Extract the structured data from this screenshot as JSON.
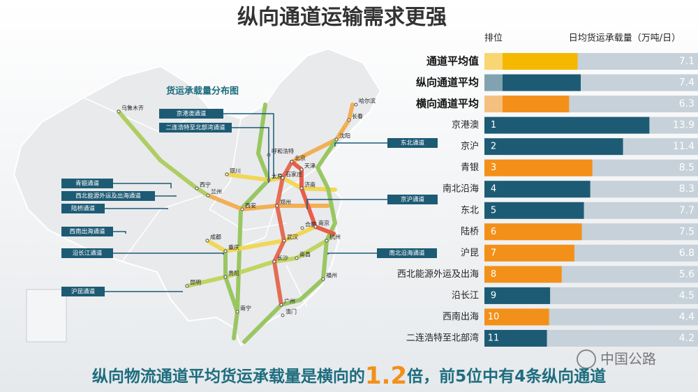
{
  "title": "纵向通道运输需求更强",
  "chart_data": {
    "type": "bar",
    "orientation": "horizontal",
    "rank_header": "排位",
    "value_header": "日均货运承载量（万吨/日）",
    "categories": [
      "通道平均值",
      "纵向通道平均",
      "横向通道平均",
      "京港澳",
      "京沪",
      "青银",
      "南北沿海",
      "东北",
      "陆桥",
      "沪昆",
      "西北能源外运及出海",
      "沿长江",
      "西南出海",
      "二连浩特至北部湾"
    ],
    "ranks": [
      null,
      null,
      null,
      1,
      2,
      3,
      4,
      5,
      6,
      7,
      8,
      9,
      10,
      11
    ],
    "values": [
      7.1,
      7.4,
      6.3,
      13.9,
      11.4,
      8.5,
      8.3,
      7.7,
      7.5,
      6.8,
      5.6,
      4.5,
      4.4,
      4.2
    ],
    "colors": [
      "#f5b800",
      "#1d5b74",
      "#f39019",
      "#1d5b74",
      "#1d5b74",
      "#f39019",
      "#1d5b74",
      "#1d5b74",
      "#f39019",
      "#f39019",
      "#f39019",
      "#1d5b74",
      "#f39019",
      "#1d5b74"
    ],
    "track_color": "#c6d1d9",
    "xlim": [
      0,
      18.5
    ]
  },
  "map": {
    "title": "货运承载量分布图",
    "corridors": [
      "京港澳通道",
      "二连浩特至北部湾通道",
      "东北通道",
      "青银通道",
      "西北能源外运及出海通道",
      "陆桥通道",
      "京沪通道",
      "西南出海通道",
      "沿长江通道",
      "南北沿海通道",
      "沪昆通道"
    ],
    "cities": [
      "乌鲁木齐",
      "哈尔滨",
      "长春",
      "沈阳",
      "呼和浩特",
      "北京",
      "天津",
      "银川",
      "太原",
      "石家庄",
      "西宁",
      "兰州",
      "济南",
      "西安",
      "郑州",
      "合肥",
      "南京",
      "杭州",
      "成都",
      "重庆",
      "武汉",
      "长沙",
      "南昌",
      "贵阳",
      "福州",
      "昆明",
      "广州",
      "南宁",
      "澳门"
    ]
  },
  "footer": {
    "parts": [
      "纵向物流通道平均货运承载量是横向的",
      "1.2",
      "倍，前5位中有4条纵向通道"
    ]
  },
  "watermark": "中国公路"
}
